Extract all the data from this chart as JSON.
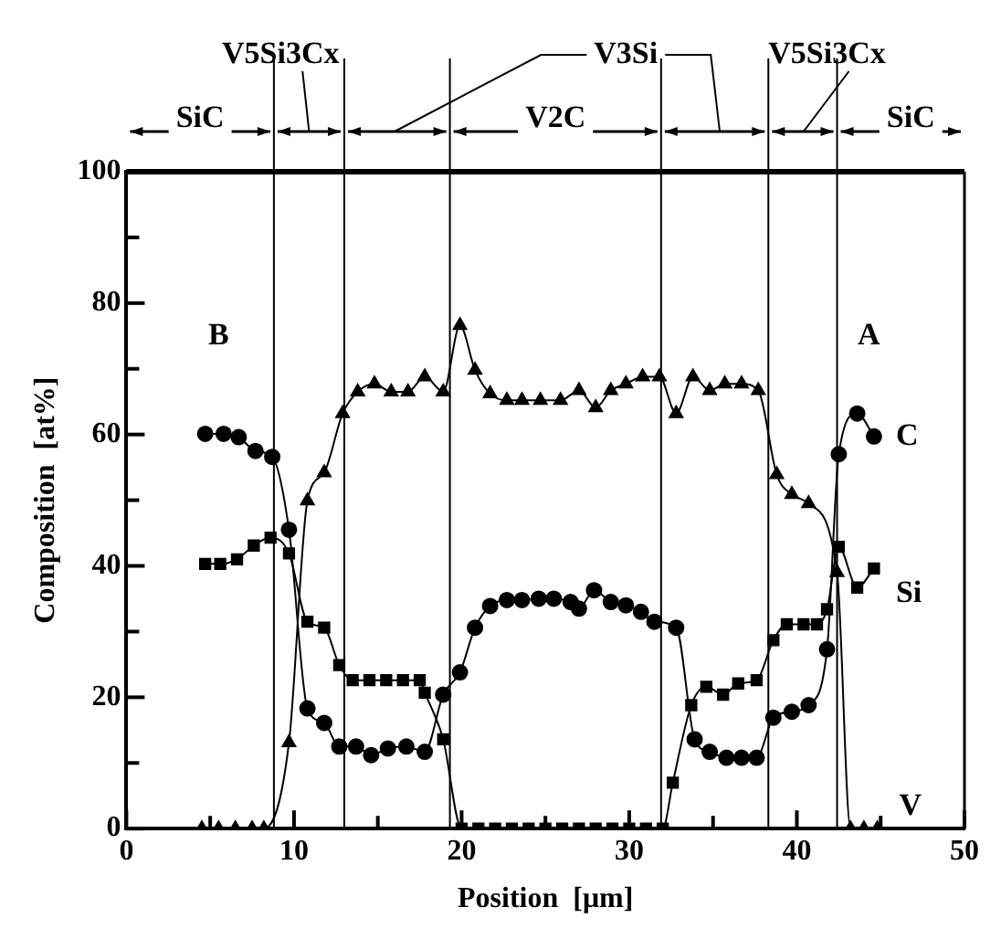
{
  "chart_data": {
    "type": "line",
    "xlabel": "Position  [μm]",
    "ylabel": "Composition  [at%]",
    "xlim": [
      0,
      50
    ],
    "xticks": [
      0,
      {
        "value": 5,
        "label": null
      },
      10,
      {
        "value": 15,
        "label": null
      },
      20,
      {
        "value": 25,
        "label": null
      },
      30,
      {
        "value": 35,
        "label": null
      },
      40,
      {
        "value": 45,
        "label": null
      },
      50
    ],
    "ylim": [
      0,
      100
    ],
    "yticks": [
      0,
      {
        "value": 10,
        "label": null
      },
      20,
      {
        "value": 30,
        "label": null
      },
      40,
      {
        "value": 50,
        "label": null
      },
      60,
      {
        "value": 70,
        "label": null
      },
      80,
      {
        "value": 90,
        "label": null
      },
      100
    ],
    "legend": false,
    "series": [
      {
        "name": "C",
        "color": "#000000",
        "marker": "circle",
        "x": [
          4.7,
          5.8,
          6.7,
          7.7,
          8.7,
          9.7,
          10.8,
          11.8,
          12.7,
          13.7,
          14.6,
          15.6,
          16.7,
          17.8,
          18.9,
          19.9,
          20.8,
          21.7,
          22.7,
          23.6,
          24.6,
          25.5,
          26.5,
          27.0,
          27.9,
          28.9,
          29.8,
          30.7,
          31.5,
          32.8,
          33.9,
          34.8,
          35.8,
          36.7,
          37.6,
          38.6,
          39.7,
          40.7,
          41.8,
          42.5,
          43.6,
          44.6
        ],
        "values": [
          60.1,
          60.1,
          59.6,
          57.5,
          56.6,
          45.5,
          18.3,
          16.1,
          12.5,
          12.5,
          11.2,
          12.2,
          12.5,
          11.7,
          20.4,
          23.8,
          30.6,
          33.9,
          34.8,
          34.8,
          35,
          35,
          34.5,
          33.5,
          36.3,
          34.5,
          34,
          33,
          31.5,
          30.6,
          13.6,
          11.7,
          10.8,
          10.8,
          10.8,
          16.9,
          17.8,
          18.8,
          27.3,
          57,
          63.2,
          59.7
        ]
      },
      {
        "name": "Si",
        "color": "#000000",
        "marker": "square",
        "x": [
          4.7,
          5.6,
          6.6,
          7.6,
          8.6,
          9.7,
          10.8,
          11.8,
          12.7,
          13.5,
          14.5,
          15.5,
          16.5,
          17.5,
          17.8,
          18.9,
          20,
          21,
          22,
          23,
          24,
          25,
          26,
          27,
          28,
          29,
          30,
          31,
          32,
          32.6,
          33.7,
          34.6,
          35.6,
          36.5,
          37.6,
          38.6,
          39.4,
          40.4,
          41.2,
          41.8,
          42.5,
          43.6,
          44.6
        ],
        "values": [
          40.3,
          40.3,
          41,
          43.1,
          44.3,
          41.9,
          31.5,
          30.6,
          24.9,
          22.6,
          22.6,
          22.6,
          22.6,
          22.6,
          20.7,
          13.6,
          0,
          0,
          0,
          0,
          0,
          0,
          0,
          0,
          0,
          0,
          0,
          0,
          0,
          7,
          18.8,
          21.6,
          20.4,
          22.1,
          22.6,
          28.7,
          31.1,
          31.1,
          31.1,
          33.4,
          42.9,
          36.7,
          39.6
        ]
      },
      {
        "name": "V",
        "color": "#000000",
        "marker": "triangle",
        "x": [
          4.5,
          5.5,
          6.5,
          7.5,
          8.2,
          9.7,
          10.8,
          11.8,
          12.9,
          13.8,
          14.8,
          15.8,
          16.8,
          17.8,
          18.9,
          19.9,
          20.8,
          21.7,
          22.7,
          23.6,
          24.7,
          25.9,
          27.0,
          28.0,
          28.9,
          29.8,
          30.8,
          31.8,
          32.8,
          33.8,
          34.8,
          35.7,
          36.7,
          37.7,
          38.8,
          39.7,
          40.7,
          41.8,
          42.4,
          43.2,
          44.0,
          44.8
        ],
        "values": [
          0,
          0,
          0,
          0,
          0,
          13.1,
          49.9,
          54.2,
          63.2,
          66.5,
          67.7,
          66.5,
          66.5,
          68.8,
          66.5,
          76.6,
          69.8,
          66.2,
          65.2,
          65.2,
          65.2,
          65.2,
          66.7,
          64.1,
          66.7,
          67.7,
          68.8,
          68.8,
          63.2,
          68.8,
          66.7,
          67.7,
          67.7,
          66.7,
          53.9,
          50.9,
          49.5,
          null,
          39,
          0,
          0,
          0
        ]
      }
    ],
    "ref_lines": [
      {
        "axis": "x",
        "value": 8.8
      },
      {
        "axis": "x",
        "value": 13.0
      },
      {
        "axis": "x",
        "value": 19.3
      },
      {
        "axis": "x",
        "value": 31.9
      },
      {
        "axis": "x",
        "value": 38.3
      },
      {
        "axis": "x",
        "value": 42.4
      }
    ],
    "annotations": [
      "SiC",
      "V5Si3Cx",
      "V3Si",
      "V2C",
      "V5Si3Cx",
      "SiC",
      "B",
      "A"
    ]
  }
}
